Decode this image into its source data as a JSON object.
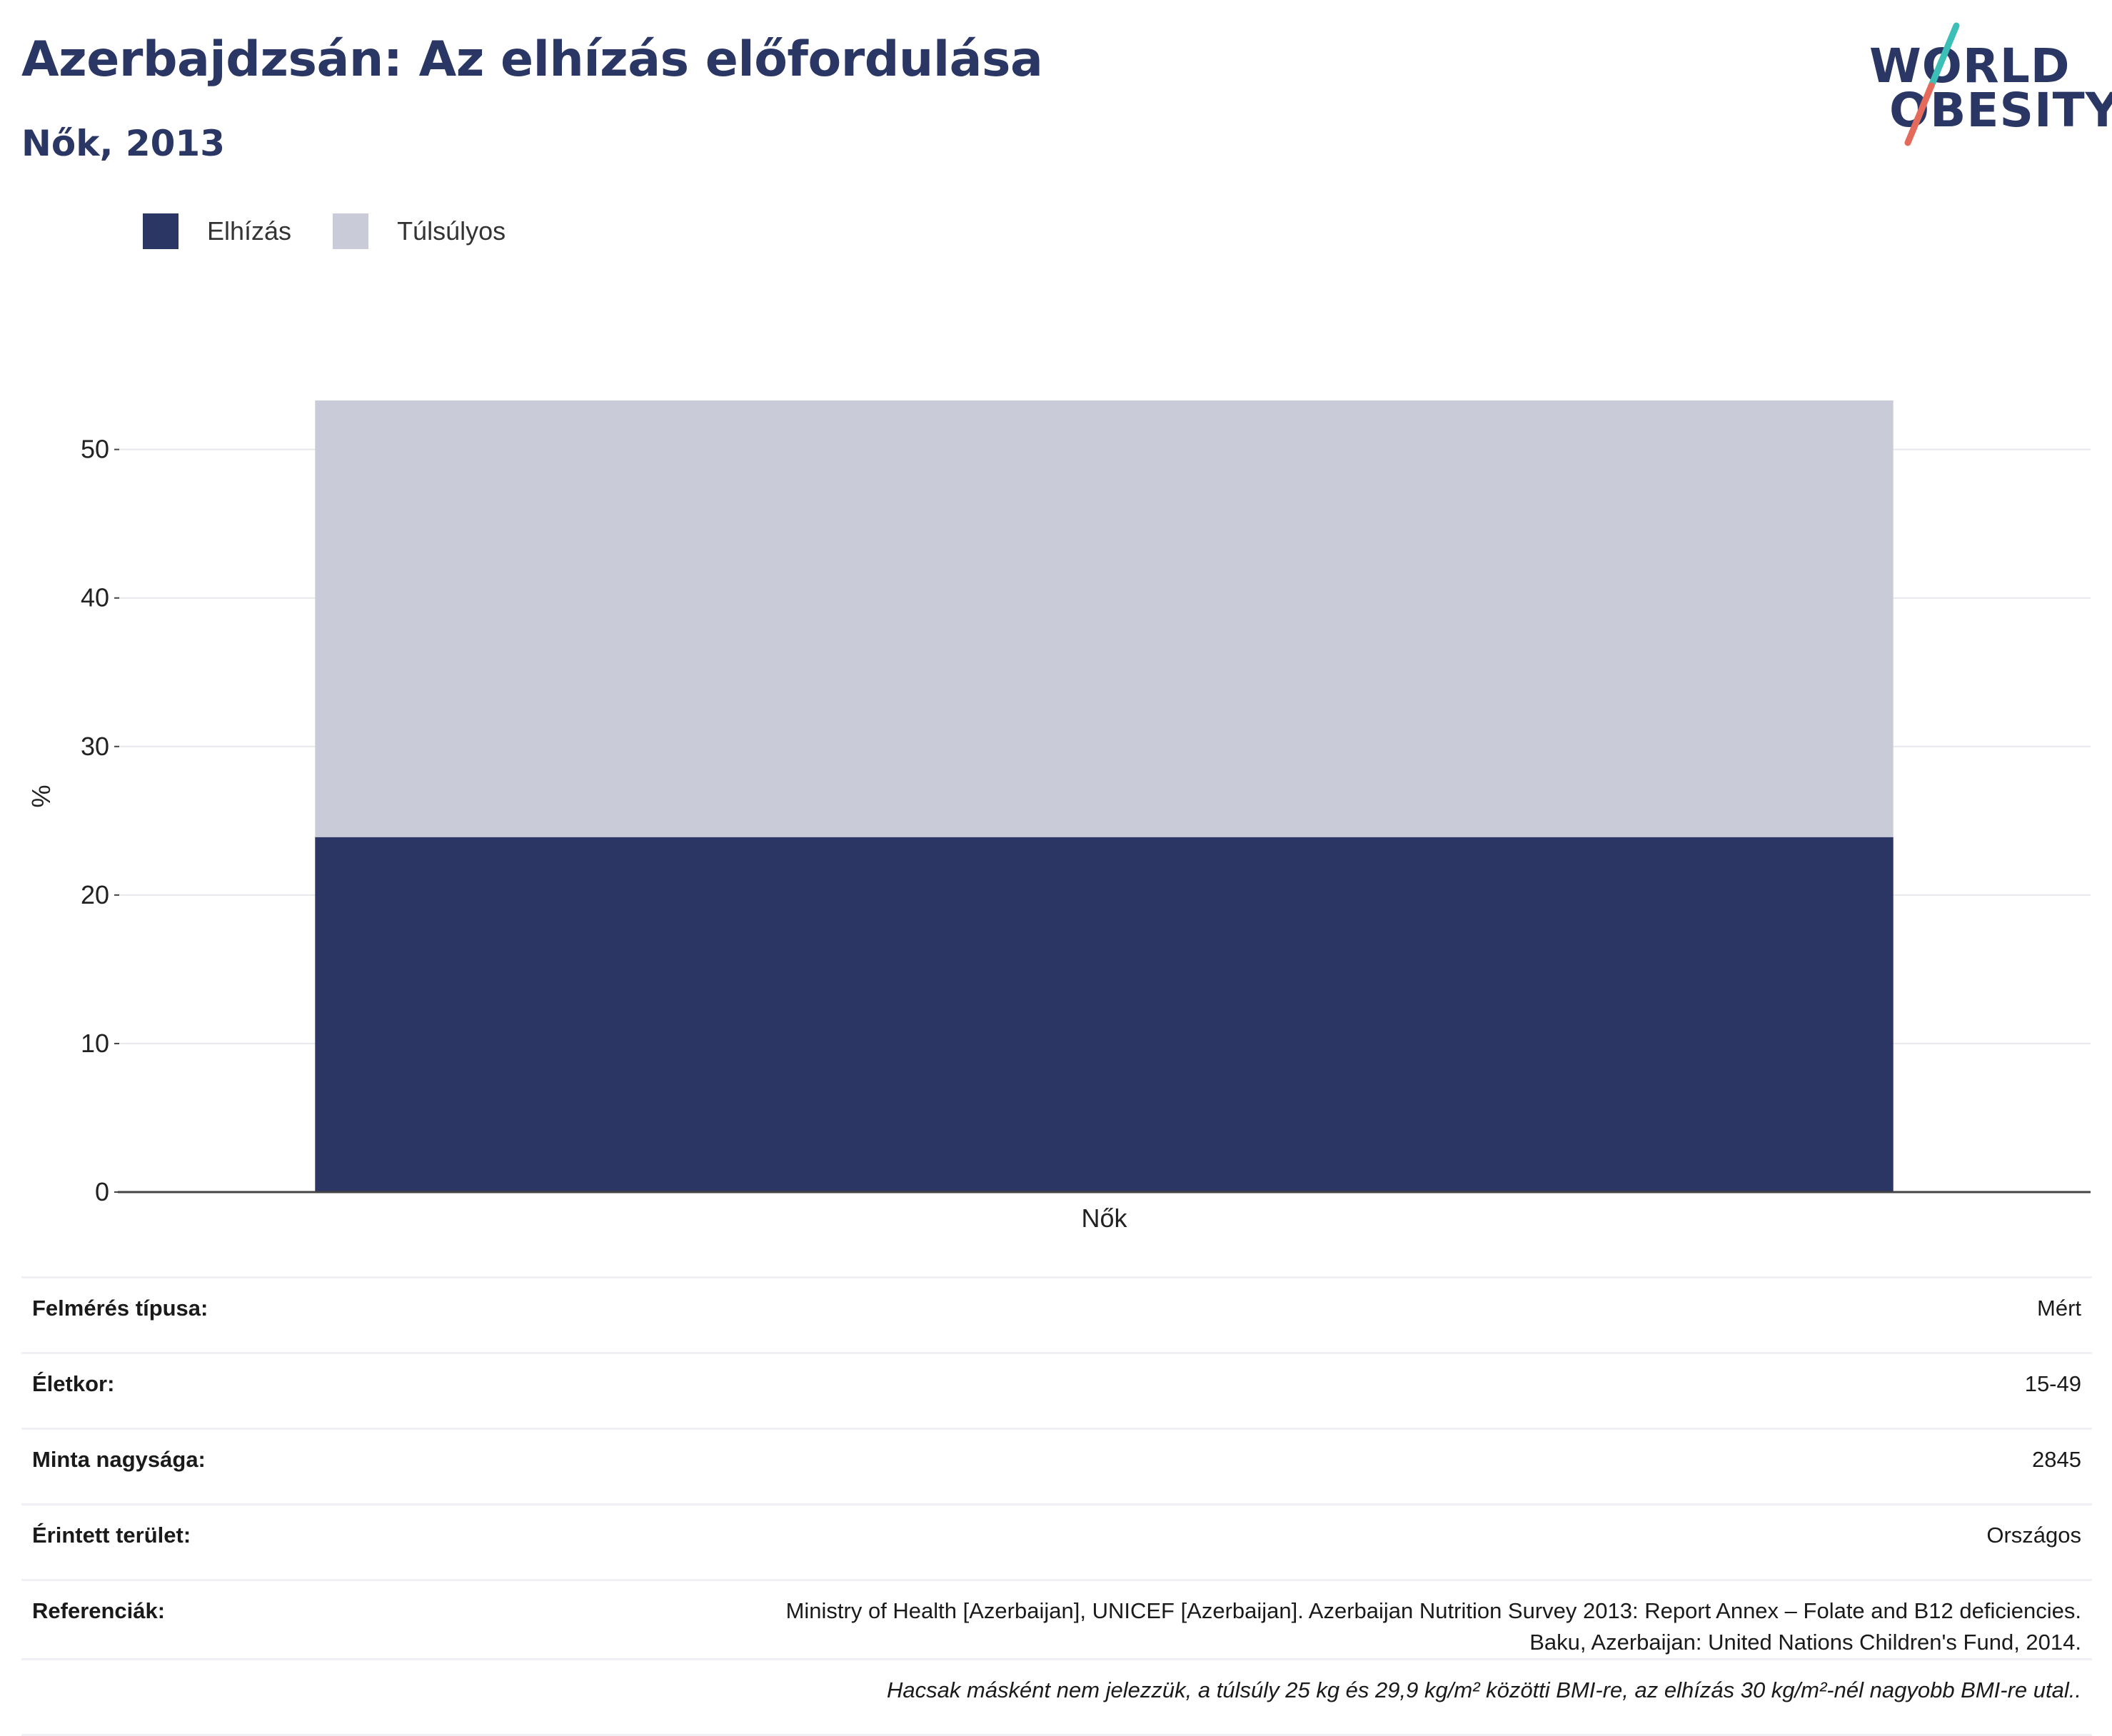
{
  "header": {
    "title": "Azerbajdzsán: Az elhízás előfordulása",
    "subtitle": "Nők, 2013"
  },
  "logo": {
    "line1": "WORLD",
    "line2": "OBESITY",
    "colors": {
      "text": "#2a3664",
      "slash_top": "#3bbfb7",
      "slash_bottom": "#e46a5b"
    }
  },
  "legend": [
    {
      "label": "Elhízás",
      "color": "#2b3664"
    },
    {
      "label": "Túlsúlyos",
      "color": "#c9ccd8"
    }
  ],
  "chart_data": {
    "type": "bar",
    "stacked": true,
    "categories": [
      "Nők"
    ],
    "series": [
      {
        "name": "Elhízás",
        "values": [
          23.9
        ],
        "color": "#2b3664"
      },
      {
        "name": "Túlsúlyos",
        "values": [
          29.4
        ],
        "color": "#c9ccd8"
      }
    ],
    "ylabel": "%",
    "ylim": [
      0,
      53.3
    ],
    "yticks": [
      0,
      10,
      20,
      30,
      40,
      50
    ],
    "grid": true,
    "legend_position": "top-left"
  },
  "info": {
    "rows": [
      {
        "label": "Felmérés típusa:",
        "value": "Mért"
      },
      {
        "label": "Életkor:",
        "value": "15-49"
      },
      {
        "label": "Minta nagysága:",
        "value": "2845"
      },
      {
        "label": "Érintett terület:",
        "value": "Országos"
      },
      {
        "label": "Referenciák:",
        "value_line1": "Ministry of Health [Azerbaijan], UNICEF [Azerbaijan]. Azerbaijan Nutrition Survey 2013: Report Annex – Folate and B12 deficiencies.",
        "value_line2": "Baku, Azerbaijan: United Nations Children's Fund, 2014."
      }
    ],
    "footnote": "Hacsak másként nem jelezzük, a túlsúly 25 kg és 29,9 kg/m² közötti BMI-re, az elhízás 30 kg/m²-nél nagyobb BMI-re utal.."
  }
}
